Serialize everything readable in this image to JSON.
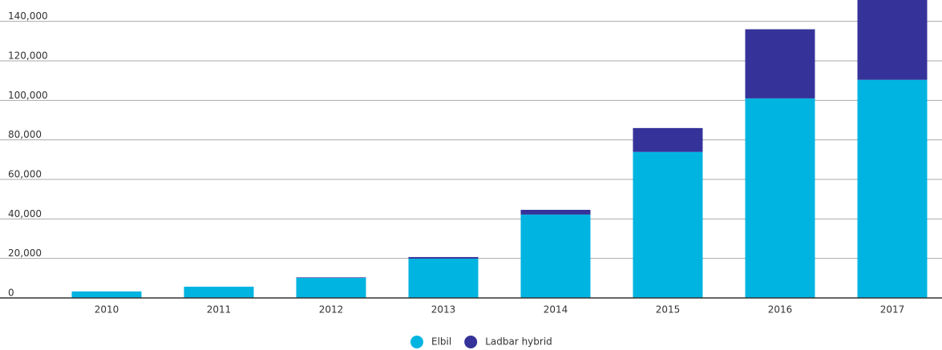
{
  "chart_data": {
    "type": "stacked-bar",
    "categories": [
      "2010",
      "2011",
      "2012",
      "2013",
      "2014",
      "2015",
      "2016",
      "2017"
    ],
    "series": [
      {
        "name": "Elbil",
        "color": "#00b4e1",
        "values": [
          3300,
          5700,
          10100,
          19900,
          42200,
          73900,
          101000,
          110400
        ]
      },
      {
        "name": "Ladbar hybrid",
        "color": "#35339a",
        "values": [
          0,
          0,
          300,
          800,
          2400,
          12100,
          35000,
          40600
        ]
      }
    ],
    "ylim": [
      0,
      150000
    ],
    "yticks": [
      {
        "value": 0,
        "label": "0"
      },
      {
        "value": 20000,
        "label": "20,000"
      },
      {
        "value": 40000,
        "label": "40,000"
      },
      {
        "value": 60000,
        "label": "60,000"
      },
      {
        "value": 80000,
        "label": "80,000"
      },
      {
        "value": 100000,
        "label": "100,000"
      },
      {
        "value": 120000,
        "label": "120,000"
      },
      {
        "value": 140000,
        "label": "140,000"
      }
    ],
    "grid": true
  }
}
